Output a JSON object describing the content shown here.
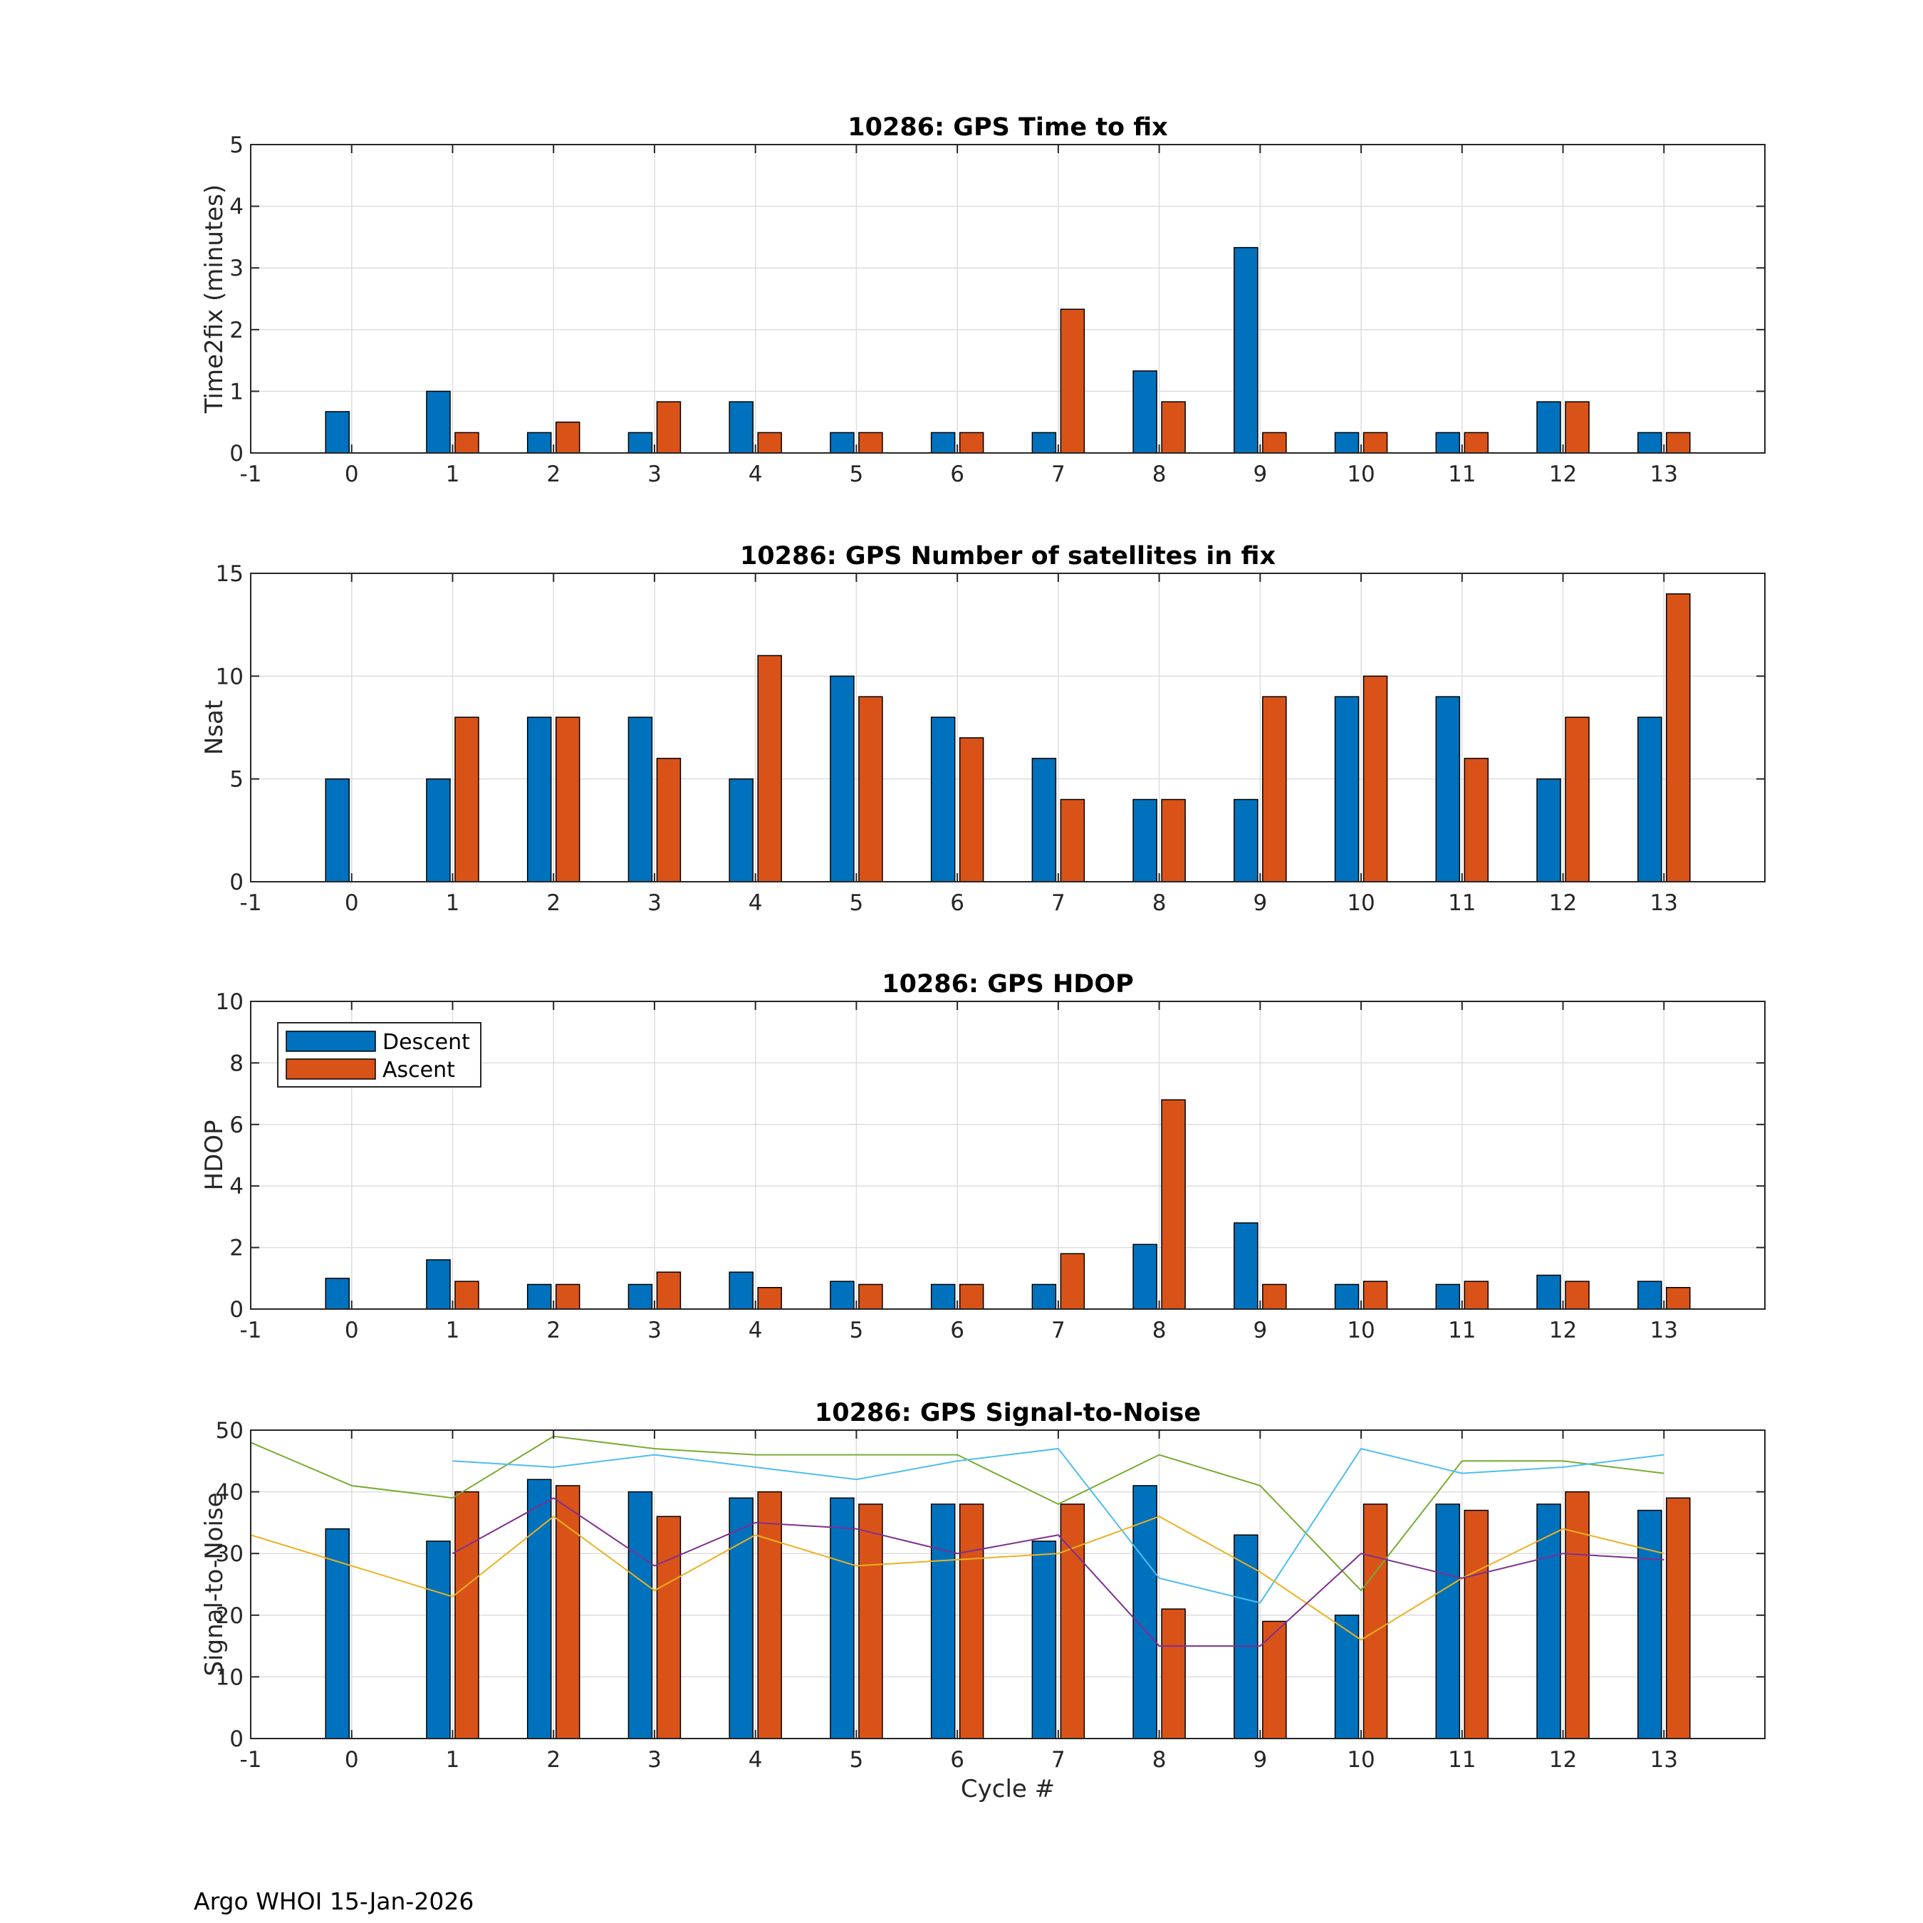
{
  "footer": "Argo WHOI 15-Jan-2026",
  "colors": {
    "descent": "#0072BD",
    "ascent": "#D95319",
    "grid": "#dddddd",
    "snr_lines": [
      "#77AC30",
      "#4DBEEE",
      "#EDB120",
      "#7E2F8E"
    ]
  },
  "legend": {
    "descent_label": "Descent",
    "ascent_label": "Ascent"
  },
  "chart_data": [
    {
      "type": "bar",
      "title": "10286: GPS Time to fix",
      "xlabel": "",
      "ylabel": "Time2fix (minutes)",
      "xlim": [
        -1,
        14
      ],
      "ylim": [
        0,
        5
      ],
      "xticks": [
        -1,
        0,
        1,
        2,
        3,
        4,
        5,
        6,
        7,
        8,
        9,
        10,
        11,
        12,
        13
      ],
      "yticks": [
        0,
        1,
        2,
        3,
        4,
        5
      ],
      "grid": true,
      "categories": [
        0,
        1,
        2,
        3,
        4,
        5,
        6,
        7,
        8,
        9,
        10,
        11,
        12,
        13
      ],
      "series": [
        {
          "name": "Descent",
          "values": [
            0.67,
            1.0,
            0.33,
            0.33,
            0.83,
            0.33,
            0.33,
            0.33,
            1.33,
            3.33,
            0.33,
            0.33,
            0.83,
            0.33
          ]
        },
        {
          "name": "Ascent",
          "values": [
            null,
            0.33,
            0.5,
            0.83,
            0.33,
            0.33,
            0.33,
            2.33,
            0.83,
            0.33,
            0.33,
            0.33,
            0.83,
            0.33
          ]
        }
      ]
    },
    {
      "type": "bar",
      "title": "10286: GPS Number of satellites in fix",
      "xlabel": "",
      "ylabel": "Nsat",
      "xlim": [
        -1,
        14
      ],
      "ylim": [
        0,
        15
      ],
      "xticks": [
        -1,
        0,
        1,
        2,
        3,
        4,
        5,
        6,
        7,
        8,
        9,
        10,
        11,
        12,
        13
      ],
      "yticks": [
        0,
        5,
        10,
        15
      ],
      "grid": true,
      "categories": [
        0,
        1,
        2,
        3,
        4,
        5,
        6,
        7,
        8,
        9,
        10,
        11,
        12,
        13
      ],
      "series": [
        {
          "name": "Descent",
          "values": [
            5,
            5,
            8,
            8,
            5,
            10,
            8,
            6,
            4,
            4,
            9,
            9,
            5,
            8
          ]
        },
        {
          "name": "Ascent",
          "values": [
            null,
            8,
            8,
            6,
            11,
            9,
            7,
            4,
            4,
            9,
            10,
            6,
            8,
            14
          ]
        }
      ]
    },
    {
      "type": "bar",
      "title": "10286: GPS HDOP",
      "xlabel": "",
      "ylabel": "HDOP",
      "xlim": [
        -1,
        14
      ],
      "ylim": [
        0,
        10
      ],
      "xticks": [
        -1,
        0,
        1,
        2,
        3,
        4,
        5,
        6,
        7,
        8,
        9,
        10,
        11,
        12,
        13
      ],
      "yticks": [
        0,
        2,
        4,
        6,
        8,
        10
      ],
      "grid": true,
      "legend": "top-left",
      "categories": [
        0,
        1,
        2,
        3,
        4,
        5,
        6,
        7,
        8,
        9,
        10,
        11,
        12,
        13
      ],
      "series": [
        {
          "name": "Descent",
          "values": [
            1.0,
            1.6,
            0.8,
            0.8,
            1.2,
            0.9,
            0.8,
            0.8,
            2.1,
            2.8,
            0.8,
            0.8,
            1.1,
            0.9
          ]
        },
        {
          "name": "Ascent",
          "values": [
            null,
            0.9,
            0.8,
            1.2,
            0.7,
            0.8,
            0.8,
            1.8,
            6.8,
            0.8,
            0.9,
            0.9,
            0.9,
            0.7
          ]
        }
      ]
    },
    {
      "type": "bar",
      "title": "10286: GPS Signal-to-Noise",
      "xlabel": "Cycle #",
      "ylabel": "Signal-to-Noise",
      "xlim": [
        -1,
        14
      ],
      "ylim": [
        0,
        50
      ],
      "xticks": [
        -1,
        0,
        1,
        2,
        3,
        4,
        5,
        6,
        7,
        8,
        9,
        10,
        11,
        12,
        13
      ],
      "yticks": [
        0,
        10,
        20,
        30,
        40,
        50
      ],
      "grid": true,
      "categories": [
        0,
        1,
        2,
        3,
        4,
        5,
        6,
        7,
        8,
        9,
        10,
        11,
        12,
        13
      ],
      "series": [
        {
          "name": "Descent",
          "values": [
            34,
            32,
            42,
            40,
            39,
            39,
            38,
            32,
            41,
            33,
            20,
            38,
            38,
            37
          ]
        },
        {
          "name": "Ascent",
          "values": [
            null,
            40,
            41,
            36,
            40,
            38,
            38,
            38,
            21,
            19,
            38,
            37,
            40,
            39
          ]
        }
      ],
      "lines": [
        {
          "x": [
            -1,
            0,
            1,
            2,
            3,
            4,
            5,
            6,
            7,
            8,
            9,
            10,
            11,
            12,
            13
          ],
          "y": [
            48,
            41,
            39,
            49,
            47,
            46,
            46,
            46,
            38,
            46,
            41,
            24,
            45,
            45,
            43
          ]
        },
        {
          "x": [
            1,
            2,
            3,
            4,
            5,
            6,
            7,
            8,
            9,
            10,
            11,
            12,
            13
          ],
          "y": [
            45,
            44,
            46,
            44,
            42,
            45,
            47,
            26,
            22,
            47,
            43,
            44,
            46
          ]
        },
        {
          "x": [
            -1,
            0,
            1,
            2,
            3,
            4,
            5,
            6,
            7,
            8,
            9,
            10,
            11,
            12,
            13
          ],
          "y": [
            33,
            28,
            23,
            36,
            24,
            33,
            28,
            29,
            30,
            36,
            27,
            16,
            26,
            34,
            30
          ]
        },
        {
          "x": [
            1,
            2,
            3,
            4,
            5,
            6,
            7,
            8,
            9,
            10,
            11,
            12,
            13
          ],
          "y": [
            30,
            39,
            28,
            35,
            34,
            30,
            33,
            15,
            15,
            30,
            26,
            30,
            29
          ]
        }
      ]
    }
  ]
}
